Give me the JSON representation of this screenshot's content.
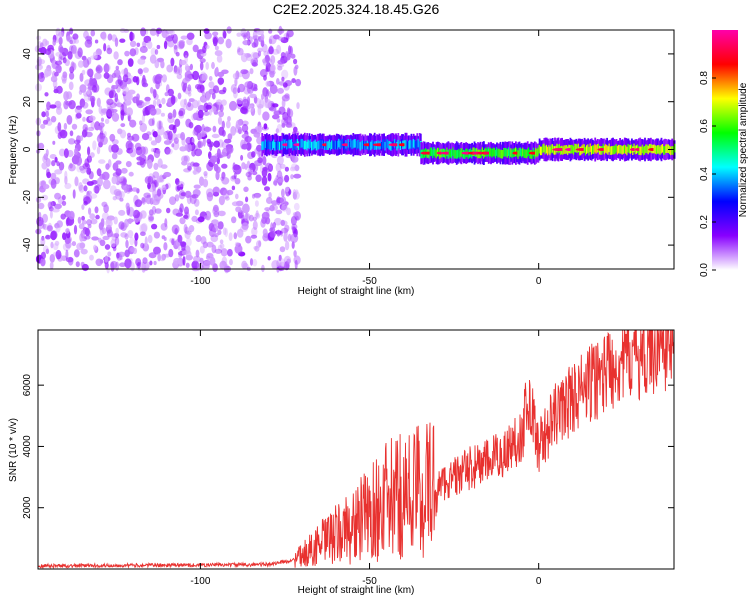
{
  "title": "C2E2.2025.324.18.45.G26",
  "chart_data": [
    {
      "type": "heatmap",
      "xlabel": "Height of straight line (km)",
      "ylabel": "Frequency (Hz)",
      "xlim": [
        -148,
        40
      ],
      "ylim": [
        -50,
        50
      ],
      "x_ticks": [
        -100,
        -50,
        0
      ],
      "y_ticks": [
        -40,
        -20,
        0,
        20,
        40
      ],
      "colorbar": {
        "label": "Normalized spectral amplitude",
        "range": [
          0,
          1
        ],
        "ticks": [
          0.0,
          0.2,
          0.4,
          0.6,
          0.8
        ],
        "colors": [
          "#ffffff",
          "#8800ff",
          "#0000ff",
          "#00ffff",
          "#00ff00",
          "#ffff00",
          "#ff0000",
          "#ff00aa"
        ]
      },
      "signal_line": {
        "segments": [
          {
            "x0": -82,
            "x1": -35,
            "freq": 2,
            "amplitude": 0.35
          },
          {
            "x0": -35,
            "x1": 0,
            "freq": -1.5,
            "amplitude": 0.55
          },
          {
            "x0": 0,
            "x1": 40,
            "freq": 0,
            "amplitude": 0.65
          }
        ]
      },
      "noise_region": {
        "x0": -148,
        "x1": -75
      }
    },
    {
      "type": "line",
      "xlabel": "Height of straight line (km)",
      "ylabel": "SNR (10 * v/v)",
      "xlim": [
        -148,
        40
      ],
      "ylim": [
        0,
        7800
      ],
      "x_ticks": [
        -100,
        -50,
        0
      ],
      "y_ticks": [
        2000,
        4000,
        6000
      ],
      "series": [
        {
          "color": "#e8312f",
          "x": [
            -148,
            -120,
            -100,
            -80,
            -72,
            -65,
            -55,
            -50,
            -45,
            -40,
            -35,
            -30,
            -25,
            -20,
            -15,
            -10,
            -5,
            -3,
            0,
            5,
            10,
            15,
            20,
            25,
            30,
            35,
            40
          ],
          "y": [
            100,
            120,
            130,
            150,
            300,
            800,
            1400,
            1800,
            2200,
            2400,
            2600,
            2700,
            3000,
            3300,
            3500,
            3800,
            4400,
            5600,
            4000,
            5000,
            5600,
            6000,
            6500,
            6900,
            7100,
            7300,
            7500
          ]
        }
      ]
    }
  ]
}
